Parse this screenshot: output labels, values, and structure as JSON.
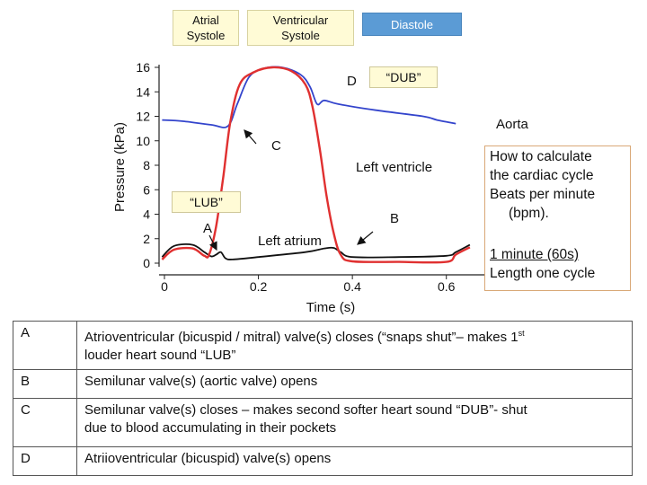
{
  "phase_boxes": {
    "atrial_systole": [
      "Atrial",
      "Systole"
    ],
    "ventricular_systole": [
      "Ventricular",
      "Systole"
    ],
    "diastole": "Diastole"
  },
  "callouts": {
    "lub": "“LUB”",
    "dub": "“DUB”"
  },
  "point_labels": {
    "A": "A",
    "B": "B",
    "C": "C",
    "D": "D"
  },
  "info_box": {
    "line1": "How to calculate",
    "line2": "the cardiac cycle",
    "line3": "Beats per minute",
    "line4": "(bpm).",
    "line5": "1 minute (60s)",
    "line6": "Length one cycle"
  },
  "chart_data": {
    "type": "line",
    "ylabel": "Pressure (kPa)",
    "xlabel": "Time (s)",
    "xlim": [
      0,
      0.7
    ],
    "ylim": [
      0,
      16
    ],
    "xticks": [
      0,
      0.2,
      0.4,
      0.6
    ],
    "xtick_labels": [
      "0",
      "0.2",
      "0.4",
      "0.6"
    ],
    "yticks": [
      0,
      2,
      4,
      6,
      8,
      10,
      12,
      14,
      16
    ],
    "ytick_labels": [
      "0",
      "2",
      "4",
      "6",
      "8",
      "10",
      "12",
      "14",
      "16"
    ],
    "series": [
      {
        "name": "Aorta",
        "color": "#3344cc",
        "points": [
          [
            -0.005,
            11.7
          ],
          [
            0.04,
            11.6
          ],
          [
            0.1,
            11.3
          ],
          [
            0.135,
            11.2
          ],
          [
            0.155,
            13.0
          ],
          [
            0.18,
            15.2
          ],
          [
            0.21,
            15.9
          ],
          [
            0.25,
            16.0
          ],
          [
            0.29,
            15.4
          ],
          [
            0.31,
            14.4
          ],
          [
            0.325,
            13.0
          ],
          [
            0.34,
            13.3
          ],
          [
            0.37,
            13.0
          ],
          [
            0.45,
            12.5
          ],
          [
            0.55,
            12.0
          ],
          [
            0.58,
            11.7
          ],
          [
            0.62,
            11.4
          ]
        ]
      },
      {
        "name": "Left ventricle",
        "color": "#e03030",
        "points": [
          [
            -0.005,
            0.3
          ],
          [
            0.02,
            1.1
          ],
          [
            0.06,
            1.2
          ],
          [
            0.085,
            0.6
          ],
          [
            0.095,
            0.7
          ],
          [
            0.11,
            3.0
          ],
          [
            0.125,
            7.0
          ],
          [
            0.14,
            11.5
          ],
          [
            0.16,
            14.6
          ],
          [
            0.19,
            15.6
          ],
          [
            0.23,
            16.0
          ],
          [
            0.27,
            15.7
          ],
          [
            0.3,
            14.6
          ],
          [
            0.315,
            12.8
          ],
          [
            0.33,
            9.5
          ],
          [
            0.345,
            5.5
          ],
          [
            0.36,
            2.5
          ],
          [
            0.375,
            0.7
          ],
          [
            0.4,
            0.15
          ],
          [
            0.5,
            0.1
          ],
          [
            0.6,
            0.1
          ],
          [
            0.62,
            0.7
          ],
          [
            0.65,
            1.3
          ]
        ]
      },
      {
        "name": "Left atrium",
        "color": "#111111",
        "points": [
          [
            -0.005,
            0.5
          ],
          [
            0.02,
            1.4
          ],
          [
            0.06,
            1.5
          ],
          [
            0.085,
            0.9
          ],
          [
            0.1,
            0.55
          ],
          [
            0.11,
            0.7
          ],
          [
            0.12,
            0.9
          ],
          [
            0.13,
            0.4
          ],
          [
            0.145,
            0.3
          ],
          [
            0.2,
            0.5
          ],
          [
            0.3,
            0.9
          ],
          [
            0.34,
            1.2
          ],
          [
            0.36,
            1.25
          ],
          [
            0.375,
            0.9
          ],
          [
            0.4,
            0.5
          ],
          [
            0.5,
            0.5
          ],
          [
            0.6,
            0.6
          ],
          [
            0.62,
            0.9
          ],
          [
            0.65,
            1.5
          ]
        ]
      }
    ],
    "annotations": [
      "Aorta",
      "Left ventricle",
      "Left atrium"
    ]
  },
  "table": {
    "rows": [
      {
        "key": "A",
        "text": "Atrioventricular (bicuspid / mitral) valve(s) closes (“snaps shut”– makes 1",
        "sup": "st",
        "text2": "louder heart sound “LUB”"
      },
      {
        "key": "B",
        "text": "Semilunar valve(s) (aortic valve) opens",
        "sup": "",
        "text2": ""
      },
      {
        "key": "C",
        "text": "Semilunar valve(s) closes – makes second softer heart sound “DUB”- shut",
        "sup": "",
        "text2": "due to blood accumulating in their pockets"
      },
      {
        "key": "D",
        "text": "Atriioventricular (bicuspid) valve(s) opens",
        "sup": "",
        "text2": ""
      }
    ]
  }
}
